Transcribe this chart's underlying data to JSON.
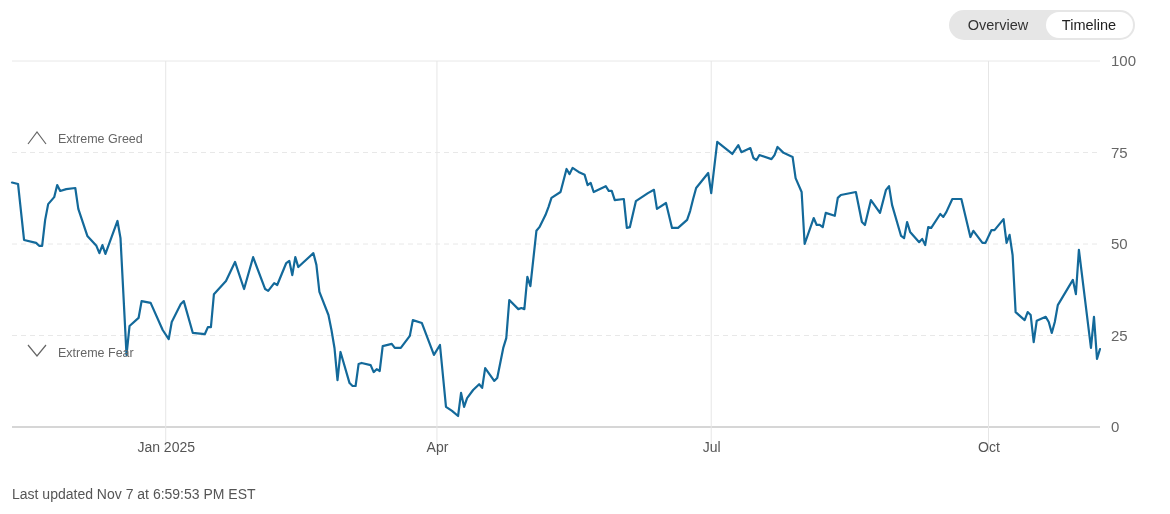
{
  "chart_data": {
    "type": "line",
    "xlim": [
      "2024-11-11",
      "2025-11-07"
    ],
    "ylim": [
      0,
      100
    ],
    "yticks": [
      0,
      25,
      50,
      75,
      100
    ],
    "xticks": [
      {
        "value": "2025-01-01",
        "label": "Jan 2025"
      },
      {
        "value": "2025-04-01",
        "label": "Apr"
      },
      {
        "value": "2025-07-01",
        "label": "Jul"
      },
      {
        "value": "2025-10-01",
        "label": "Oct"
      }
    ],
    "grid": true,
    "marker": "none",
    "line_style": "solid",
    "annotations": [
      "Extreme Greed",
      "Extreme Fear",
      "Last updated Nov 7 at 6:59:53 PM EST",
      "Overview",
      "Timeline"
    ],
    "series": [
      {
        "color": "#13699a",
        "x": [
          "2024-11-11",
          "2024-11-13",
          "2024-11-15",
          "2024-11-19",
          "2024-11-20",
          "2024-11-21",
          "2024-11-22",
          "2024-11-23",
          "2024-11-25",
          "2024-11-26",
          "2024-11-27",
          "2024-11-29",
          "2024-12-02",
          "2024-12-03",
          "2024-12-06",
          "2024-12-09",
          "2024-12-10",
          "2024-12-11",
          "2024-12-12",
          "2024-12-16",
          "2024-12-17",
          "2024-12-19",
          "2024-12-20",
          "2024-12-23",
          "2024-12-24",
          "2024-12-27",
          "2024-12-31",
          "2025-01-02",
          "2025-01-03",
          "2025-01-06",
          "2025-01-07",
          "2025-01-10",
          "2025-01-14",
          "2025-01-15",
          "2025-01-16",
          "2025-01-17",
          "2025-01-21",
          "2025-01-24",
          "2025-01-27",
          "2025-01-30",
          "2025-02-03",
          "2025-02-04",
          "2025-02-06",
          "2025-02-07",
          "2025-02-10",
          "2025-02-11",
          "2025-02-12",
          "2025-02-13",
          "2025-02-14",
          "2025-02-19",
          "2025-02-20",
          "2025-02-21",
          "2025-02-24",
          "2025-02-25",
          "2025-02-26",
          "2025-02-27",
          "2025-02-28",
          "2025-03-03",
          "2025-03-04",
          "2025-03-05",
          "2025-03-06",
          "2025-03-07",
          "2025-03-10",
          "2025-03-11",
          "2025-03-12",
          "2025-03-13",
          "2025-03-14",
          "2025-03-17",
          "2025-03-18",
          "2025-03-20",
          "2025-03-23",
          "2025-03-24",
          "2025-03-27",
          "2025-03-31",
          "2025-04-02",
          "2025-04-04",
          "2025-04-06",
          "2025-04-08",
          "2025-04-09",
          "2025-04-10",
          "2025-04-11",
          "2025-04-13",
          "2025-04-15",
          "2025-04-16",
          "2025-04-17",
          "2025-04-20",
          "2025-04-21",
          "2025-04-23",
          "2025-04-24",
          "2025-04-25",
          "2025-04-28",
          "2025-04-29",
          "2025-04-30",
          "2025-05-01",
          "2025-05-02",
          "2025-05-04",
          "2025-05-05",
          "2025-05-07",
          "2025-05-08",
          "2025-05-09",
          "2025-05-12",
          "2025-05-14",
          "2025-05-15",
          "2025-05-16",
          "2025-05-18",
          "2025-05-20",
          "2025-05-21",
          "2025-05-22",
          "2025-05-23",
          "2025-05-27",
          "2025-05-28",
          "2025-05-29",
          "2025-05-30",
          "2025-06-02",
          "2025-06-03",
          "2025-06-04",
          "2025-06-06",
          "2025-06-10",
          "2025-06-12",
          "2025-06-13",
          "2025-06-16",
          "2025-06-18",
          "2025-06-20",
          "2025-06-23",
          "2025-06-24",
          "2025-06-25",
          "2025-06-26",
          "2025-06-30",
          "2025-07-01",
          "2025-07-03",
          "2025-07-08",
          "2025-07-10",
          "2025-07-11",
          "2025-07-14",
          "2025-07-15",
          "2025-07-16",
          "2025-07-17",
          "2025-07-21",
          "2025-07-22",
          "2025-07-23",
          "2025-07-25",
          "2025-07-28",
          "2025-07-29",
          "2025-07-31",
          "2025-08-01",
          "2025-08-04",
          "2025-08-05",
          "2025-08-06",
          "2025-08-07",
          "2025-08-08",
          "2025-08-11",
          "2025-08-12",
          "2025-08-13",
          "2025-08-18",
          "2025-08-20",
          "2025-08-21",
          "2025-08-23",
          "2025-08-26",
          "2025-08-28",
          "2025-08-29",
          "2025-08-30",
          "2025-09-02",
          "2025-09-03",
          "2025-09-04",
          "2025-09-05",
          "2025-09-08",
          "2025-09-09",
          "2025-09-10",
          "2025-09-11",
          "2025-09-12",
          "2025-09-15",
          "2025-09-16",
          "2025-09-17",
          "2025-09-19",
          "2025-09-22",
          "2025-09-25",
          "2025-09-26",
          "2025-09-29",
          "2025-09-30",
          "2025-10-02",
          "2025-10-03",
          "2025-10-06",
          "2025-10-07",
          "2025-10-08",
          "2025-10-09",
          "2025-10-10",
          "2025-10-13",
          "2025-10-14",
          "2025-10-15",
          "2025-10-16",
          "2025-10-17",
          "2025-10-20",
          "2025-10-21",
          "2025-10-22",
          "2025-10-23",
          "2025-10-24",
          "2025-10-29",
          "2025-10-30",
          "2025-10-31",
          "2025-11-04",
          "2025-11-05",
          "2025-11-06",
          "2025-11-07"
        ],
        "values": [
          66.8,
          66.4,
          51.1,
          50.3,
          49.5,
          49.5,
          56.6,
          60.9,
          62.8,
          66.1,
          64.5,
          65,
          65.3,
          59.6,
          52.2,
          49.5,
          47.5,
          49.7,
          47.3,
          56.3,
          51.6,
          19.7,
          27.6,
          29.8,
          34.4,
          33.9,
          26.5,
          24,
          28.7,
          33.6,
          34.4,
          25.7,
          25.4,
          27.3,
          27.3,
          36.3,
          39.9,
          45.1,
          37.7,
          46.4,
          37.7,
          37.2,
          39.3,
          38.8,
          44.8,
          45.4,
          41.5,
          46.4,
          43.7,
          47.5,
          44.3,
          36.9,
          30.6,
          26.5,
          21.6,
          12.8,
          20.5,
          12,
          11.2,
          11.2,
          17.2,
          17.5,
          16.9,
          15,
          15.8,
          15.3,
          22.1,
          22.7,
          21.6,
          21.6,
          24.9,
          29.2,
          28.4,
          19.7,
          22.4,
          5.5,
          4.4,
          3,
          9.3,
          5.5,
          7.9,
          10.1,
          11.7,
          10.7,
          16.1,
          12.6,
          13.4,
          21.6,
          24.3,
          34.7,
          32.2,
          32.5,
          32.2,
          41,
          38.5,
          53.6,
          54.6,
          57.9,
          60.1,
          62.6,
          64.2,
          70.5,
          69.1,
          70.8,
          69.7,
          68.9,
          66.1,
          66.7,
          64.2,
          65.8,
          64.5,
          64.5,
          62,
          62.3,
          54.4,
          54.6,
          61.7,
          63.9,
          64.8,
          59.6,
          61.2,
          54.4,
          54.4,
          56.6,
          59,
          62.3,
          65.3,
          69.4,
          63.9,
          77.9,
          74.6,
          77,
          75.1,
          76.2,
          73.5,
          72.9,
          74.3,
          73.2,
          74.3,
          76.5,
          74.9,
          73.8,
          68,
          64.2,
          50,
          57.1,
          55.2,
          55.2,
          54.6,
          58.5,
          57.7,
          62.6,
          63.4,
          64.2,
          56,
          55.2,
          62,
          58.5,
          64.8,
          65.8,
          60.7,
          52.2,
          51.6,
          56,
          53.3,
          50.5,
          51.4,
          49.7,
          54.6,
          54.4,
          58.2,
          57.4,
          58.7,
          62.3,
          62.3,
          51.9,
          53.6,
          50.3,
          50.3,
          53.8,
          53.8,
          56.8,
          50.3,
          52.5,
          47,
          31.4,
          29.2,
          31.4,
          30.6,
          23.2,
          29,
          30.1,
          28.7,
          25.7,
          28.7,
          33.3,
          40.2,
          36.3,
          48.4,
          21.6,
          30.1,
          18.6,
          21.3
        ]
      }
    ]
  }
}
